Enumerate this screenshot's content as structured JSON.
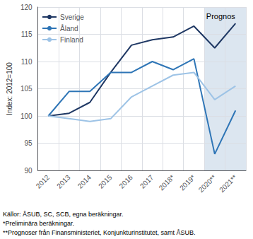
{
  "chart_data": {
    "type": "line",
    "categories": [
      "2012",
      "2013",
      "2014",
      "2015",
      "2016",
      "2017",
      "2018*",
      "2019*",
      "2020**",
      "2021**"
    ],
    "series": [
      {
        "name": "Sverige",
        "color": "#1f3864",
        "values": [
          100.0,
          100.5,
          102.5,
          108.0,
          113.0,
          114.0,
          114.5,
          116.5,
          112.5,
          117.0
        ]
      },
      {
        "name": "Åland",
        "color": "#2e75b6",
        "values": [
          100.0,
          104.5,
          104.5,
          108.0,
          108.0,
          110.0,
          108.5,
          110.5,
          93.0,
          101.0
        ]
      },
      {
        "name": "Finland",
        "color": "#9dc3e6",
        "values": [
          100.0,
          99.5,
          99.0,
          99.5,
          103.5,
          105.5,
          107.5,
          108.0,
          103.0,
          105.5
        ]
      }
    ],
    "ylabel": "Index: 2012=100",
    "ylim": [
      90,
      120
    ],
    "yticks": [
      90,
      95,
      100,
      105,
      110,
      115,
      120
    ],
    "grid": true,
    "legend": "upper left",
    "shaded_region": {
      "from": "2020**",
      "to": "2021**",
      "color": "#dce6f0"
    },
    "annotations": [
      {
        "text": "Prognos",
        "x": "2020**",
        "y": 119.0
      }
    ],
    "footnotes": [
      "Källor: ÅSUB, SC, SCB, egna beräkningar.",
      "*Preliminära beräkningar.",
      "**Prognoser från Finansministeriet, Konjunkturinstitutet, samt ÅSUB."
    ]
  }
}
